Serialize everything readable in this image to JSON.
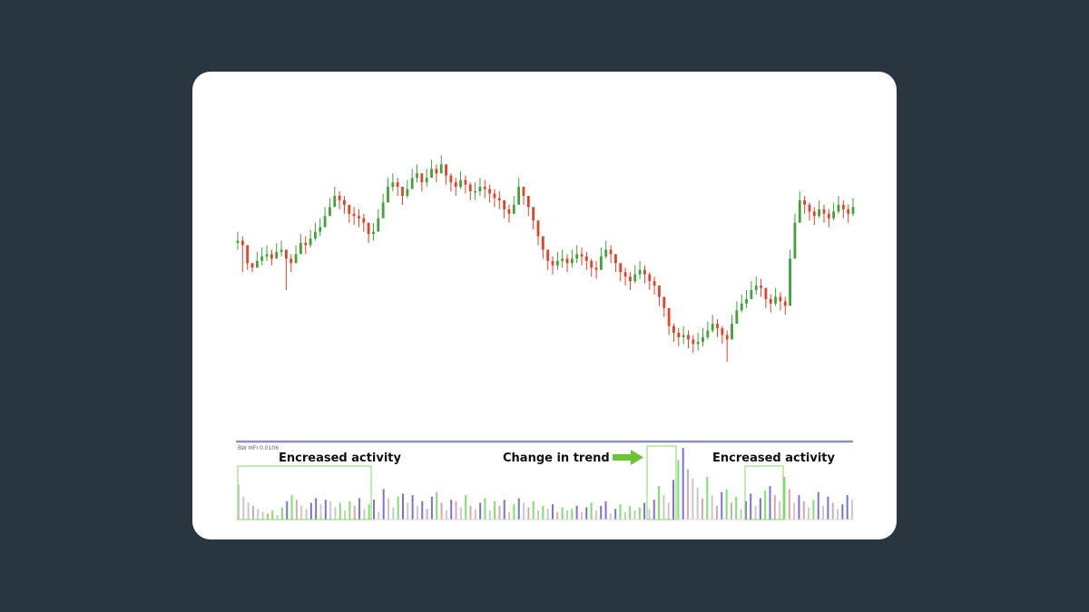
{
  "colors": {
    "page_bg": "#29353f",
    "card_bg": "#ffffff",
    "candle_up": "#3fa33a",
    "candle_down": "#e4412b",
    "panel_divider": "#8e8fbe",
    "bar_green": "#7ee06d",
    "bar_blue": "#7a72d6",
    "bar_pink": "#d9a7b1",
    "bar_gray": "#c9c9c9",
    "highlight_box": "#8fd46a",
    "arrow": "#6cc33a"
  },
  "indicator": {
    "title": "BW MFI 0.0106"
  },
  "annotations": {
    "left": "Encreased activity",
    "middle": "Change in trend",
    "right": "Encreased activity"
  },
  "chart_data": [
    {
      "type": "candlestick",
      "series": [
        {
          "values": [
            62,
            60,
            52,
            50,
            53,
            55,
            56,
            54,
            57,
            58,
            54,
            52,
            56,
            61,
            60,
            63,
            66,
            68,
            73,
            77,
            82,
            80,
            78,
            74,
            73,
            72,
            70,
            65,
            66,
            72,
            79,
            86,
            88,
            86,
            82,
            85,
            90,
            92,
            88,
            90,
            94,
            92,
            96,
            91,
            88,
            86,
            89,
            87,
            84,
            84,
            86,
            85,
            83,
            81,
            80,
            76,
            74,
            78,
            86,
            82,
            77,
            71,
            64,
            58,
            53,
            51,
            53,
            54,
            52,
            54,
            56,
            55,
            53,
            50,
            49,
            55,
            58,
            56,
            52,
            48,
            46,
            44,
            47,
            49,
            47,
            44,
            42,
            37,
            32,
            24,
            21,
            19,
            20,
            18,
            16,
            17,
            19,
            22,
            25,
            23,
            20,
            18,
            25,
            31,
            34,
            36,
            40,
            42,
            41,
            36,
            34,
            37,
            35,
            33,
            54,
            70,
            80,
            78,
            75,
            73,
            76,
            74,
            72,
            75,
            78,
            76,
            74,
            77
          ],
          "wicks": [
            [
              66,
              58
            ],
            [
              64,
              48
            ],
            [
              56,
              49
            ],
            [
              52,
              48
            ],
            [
              57,
              50
            ],
            [
              59,
              51
            ],
            [
              60,
              53
            ],
            [
              58,
              51
            ],
            [
              61,
              54
            ],
            [
              62,
              55
            ],
            [
              58,
              40
            ],
            [
              56,
              48
            ],
            [
              60,
              52
            ],
            [
              65,
              57
            ],
            [
              64,
              56
            ],
            [
              67,
              59
            ],
            [
              70,
              62
            ],
            [
              72,
              64
            ],
            [
              77,
              69
            ],
            [
              81,
              73
            ],
            [
              86,
              78
            ],
            [
              84,
              76
            ],
            [
              82,
              74
            ],
            [
              78,
              70
            ],
            [
              77,
              69
            ],
            [
              76,
              68
            ],
            [
              74,
              66
            ],
            [
              69,
              61
            ],
            [
              70,
              62
            ],
            [
              76,
              68
            ],
            [
              83,
              75
            ],
            [
              90,
              82
            ],
            [
              92,
              84
            ],
            [
              90,
              82
            ],
            [
              86,
              78
            ],
            [
              89,
              81
            ],
            [
              94,
              86
            ],
            [
              96,
              88
            ],
            [
              92,
              84
            ],
            [
              94,
              86
            ],
            [
              98,
              90
            ],
            [
              96,
              88
            ],
            [
              100,
              92
            ],
            [
              95,
              87
            ],
            [
              92,
              84
            ],
            [
              90,
              82
            ],
            [
              93,
              85
            ],
            [
              91,
              83
            ],
            [
              88,
              80
            ],
            [
              88,
              80
            ],
            [
              90,
              82
            ],
            [
              89,
              81
            ],
            [
              87,
              79
            ],
            [
              85,
              77
            ],
            [
              84,
              76
            ],
            [
              80,
              72
            ],
            [
              78,
              70
            ],
            [
              82,
              74
            ],
            [
              90,
              82
            ],
            [
              86,
              78
            ],
            [
              81,
              73
            ],
            [
              75,
              67
            ],
            [
              68,
              60
            ],
            [
              62,
              54
            ],
            [
              57,
              49
            ],
            [
              55,
              47
            ],
            [
              57,
              49
            ],
            [
              58,
              50
            ],
            [
              56,
              48
            ],
            [
              58,
              50
            ],
            [
              60,
              52
            ],
            [
              59,
              51
            ],
            [
              57,
              49
            ],
            [
              54,
              46
            ],
            [
              53,
              45
            ],
            [
              59,
              51
            ],
            [
              62,
              54
            ],
            [
              60,
              52
            ],
            [
              56,
              48
            ],
            [
              52,
              44
            ],
            [
              50,
              42
            ],
            [
              48,
              40
            ],
            [
              51,
              43
            ],
            [
              53,
              45
            ],
            [
              51,
              43
            ],
            [
              48,
              40
            ],
            [
              46,
              38
            ],
            [
              41,
              33
            ],
            [
              36,
              28
            ],
            [
              28,
              20
            ],
            [
              25,
              17
            ],
            [
              23,
              15
            ],
            [
              24,
              16
            ],
            [
              22,
              14
            ],
            [
              20,
              12
            ],
            [
              21,
              13
            ],
            [
              23,
              15
            ],
            [
              26,
              18
            ],
            [
              29,
              21
            ],
            [
              27,
              19
            ],
            [
              24,
              16
            ],
            [
              22,
              8
            ],
            [
              29,
              21
            ],
            [
              35,
              27
            ],
            [
              38,
              30
            ],
            [
              40,
              32
            ],
            [
              44,
              36
            ],
            [
              46,
              38
            ],
            [
              45,
              37
            ],
            [
              40,
              32
            ],
            [
              38,
              30
            ],
            [
              41,
              33
            ],
            [
              39,
              31
            ],
            [
              37,
              29
            ],
            [
              58,
              50
            ],
            [
              74,
              66
            ],
            [
              84,
              76
            ],
            [
              82,
              74
            ],
            [
              79,
              71
            ],
            [
              77,
              69
            ],
            [
              80,
              72
            ],
            [
              78,
              70
            ],
            [
              76,
              68
            ],
            [
              79,
              71
            ],
            [
              82,
              74
            ],
            [
              80,
              72
            ],
            [
              78,
              70
            ],
            [
              81,
              73
            ]
          ]
        }
      ],
      "xlabel": "",
      "ylabel": "",
      "ylim": [
        0,
        105
      ],
      "grid": false
    },
    {
      "type": "bar",
      "name": "BW MFI",
      "values": [
        2.3,
        1.5,
        1.1,
        0.9,
        0.7,
        0.5,
        0.4,
        0.6,
        0.3,
        0.8,
        1.2,
        1.6,
        1.3,
        0.9,
        0.7,
        1.1,
        1.4,
        1.0,
        1.3,
        1.2,
        0.8,
        1.1,
        0.6,
        1.2,
        0.9,
        1.4,
        0.7,
        1.0,
        1.3,
        0.5,
        2.0,
        1.4,
        0.8,
        1.5,
        1.7,
        1.1,
        1.6,
        0.9,
        1.2,
        0.7,
        1.5,
        1.8,
        1.1,
        0.6,
        1.3,
        1.2,
        0.8,
        1.6,
        0.9,
        0.7,
        1.1,
        1.4,
        0.6,
        1.2,
        0.9,
        1.3,
        0.5,
        1.0,
        1.4,
        1.1,
        0.8,
        1.2,
        0.6,
        0.9,
        0.7,
        1.0,
        0.5,
        0.8,
        0.6,
        0.7,
        0.9,
        0.5,
        0.8,
        1.1,
        0.6,
        0.9,
        1.2,
        0.4,
        0.7,
        1.0,
        0.5,
        0.9,
        0.6,
        0.8,
        1.1,
        0.7,
        1.3,
        2.2,
        1.6,
        1.1,
        2.6,
        3.9,
        4.7,
        3.3,
        2.7,
        2.1,
        1.4,
        2.8,
        1.6,
        0.9,
        1.8,
        2.0,
        1.1,
        1.5,
        0.7,
        1.2,
        1.7,
        0.9,
        1.4,
        1.9,
        2.2,
        1.6,
        1.2,
        2.8,
        2.0,
        1.1,
        1.6,
        1.2,
        0.8,
        1.3,
        1.8,
        0.9,
        1.5,
        1.1,
        0.7,
        1.0,
        1.6,
        1.3
      ],
      "ylim": [
        0,
        5
      ]
    }
  ]
}
